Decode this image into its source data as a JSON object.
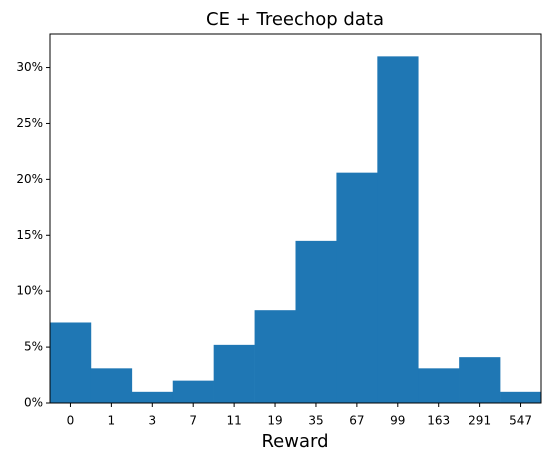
{
  "chart_data": {
    "type": "bar",
    "title": "CE + Treechop data",
    "x_label": "Reward",
    "categories": [
      "0",
      "1",
      "3",
      "7",
      "11",
      "19",
      "35",
      "67",
      "99",
      "163",
      "291",
      "547"
    ],
    "values": [
      7.2,
      3.1,
      1.0,
      2.0,
      5.2,
      8.3,
      14.5,
      20.6,
      31.0,
      3.1,
      4.1,
      1.0
    ],
    "color": "#1f77b4",
    "ylim": [
      0,
      33
    ],
    "yticks": [
      {
        "value": 0,
        "label": "0%"
      },
      {
        "value": 5,
        "label": "5%"
      },
      {
        "value": 10,
        "label": "10%"
      },
      {
        "value": 15,
        "label": "15%"
      },
      {
        "value": 20,
        "label": "20%"
      },
      {
        "value": 25,
        "label": "25%"
      },
      {
        "value": 30,
        "label": "30%"
      }
    ],
    "grid": false
  }
}
